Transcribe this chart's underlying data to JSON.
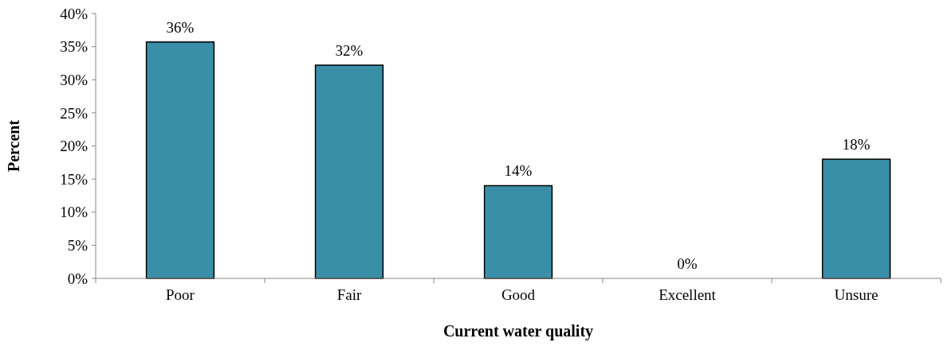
{
  "chart_data": {
    "type": "bar",
    "xlabel": "Current water quality",
    "ylabel": "Percent",
    "categories": [
      "Poor",
      "Fair",
      "Good",
      "Excellent",
      "Unsure"
    ],
    "values": [
      35.7,
      32.2,
      14,
      0,
      18
    ],
    "value_labels": [
      "36%",
      "32%",
      "14%",
      "0%",
      "18%"
    ],
    "color": "#3a8fa8",
    "ylim": [
      0,
      40
    ],
    "yticks": [
      {
        "value": 0,
        "label": "0%"
      },
      {
        "value": 5,
        "label": "5%"
      },
      {
        "value": 10,
        "label": "10%"
      },
      {
        "value": 15,
        "label": "15%"
      },
      {
        "value": 20,
        "label": "20%"
      },
      {
        "value": 25,
        "label": "25%"
      },
      {
        "value": 30,
        "label": "30%"
      },
      {
        "value": 35,
        "label": "35%"
      },
      {
        "value": 40,
        "label": "40%"
      }
    ],
    "grid": false
  }
}
